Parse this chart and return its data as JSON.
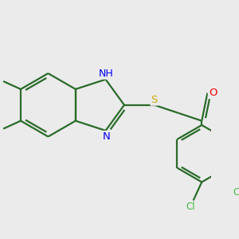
{
  "bg_color": "#ebebeb",
  "bond_color": "#2a6b2a",
  "bond_width": 1.6,
  "atom_colors": {
    "N": "#0000ee",
    "S": "#ccaa00",
    "O": "#ee0000",
    "Cl": "#44bb44",
    "C": "#2a6b2a",
    "H": "#555555"
  },
  "font_size": 9.5,
  "fig_width": 3.0,
  "fig_height": 3.0,
  "dpi": 100,
  "xlim": [
    -1.55,
    1.65
  ],
  "ylim": [
    -1.55,
    1.35
  ]
}
